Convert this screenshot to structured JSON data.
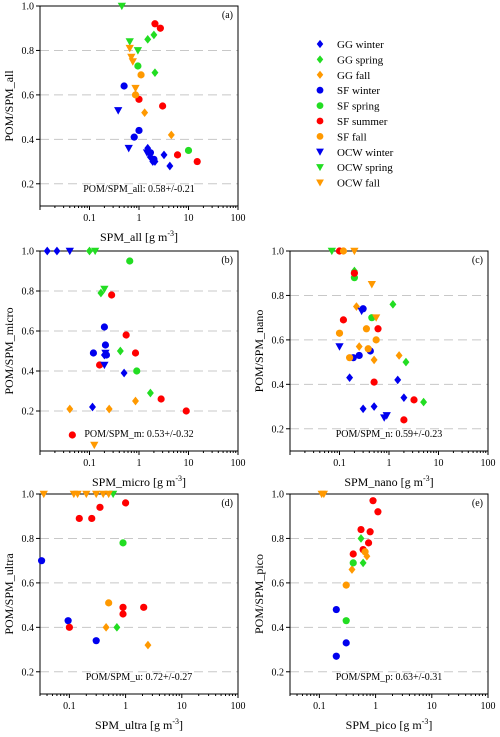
{
  "colors": {
    "GG": "#0000ee",
    "SF_winter": "#0000ee",
    "spring": "#22dd22",
    "fall": "#ff9900",
    "summer": "#ff0000",
    "grid": "#c8c8c8"
  },
  "legend": {
    "placement": "top-right",
    "items": [
      {
        "label": "GG winter",
        "shape": "diamond",
        "color": "#0000ee"
      },
      {
        "label": "GG spring",
        "shape": "diamond",
        "color": "#22dd22"
      },
      {
        "label": "GG fall",
        "shape": "diamond",
        "color": "#ff9900"
      },
      {
        "label": "SF winter",
        "shape": "circle",
        "color": "#0000ee"
      },
      {
        "label": "SF spring",
        "shape": "circle",
        "color": "#22dd22"
      },
      {
        "label": "SF summer",
        "shape": "circle",
        "color": "#ff0000"
      },
      {
        "label": "SF fall",
        "shape": "circle",
        "color": "#ff9900"
      },
      {
        "label": "OCW winter",
        "shape": "triangle-down",
        "color": "#0000ee"
      },
      {
        "label": "OCW spring",
        "shape": "triangle-down",
        "color": "#22dd22"
      },
      {
        "label": "OCW fall",
        "shape": "triangle-down",
        "color": "#ff9900"
      }
    ]
  },
  "chart_data": [
    {
      "type": "scatter",
      "panel": "(a)",
      "ylabel": "POM/SPM_all",
      "xlabel_main": "SPM_all [g m",
      "xlabel_sup": "-3",
      "xlabel_end": "]",
      "annotation": "POM/SPM_all: 0.58+/-0.21",
      "xscale": "log",
      "xlim": [
        0.01,
        100
      ],
      "ylim": [
        0.1,
        1.0
      ],
      "xticks": [
        "0.1",
        "1",
        "10",
        "100"
      ],
      "yticks": [
        "0.2",
        "0.4",
        "0.6",
        "0.8",
        "1.0"
      ],
      "grid": "horizontal-dashed",
      "series": [
        {
          "name": "GG winter",
          "points": [
            [
              1.5,
              0.36
            ],
            [
              1.7,
              0.32
            ],
            [
              1.9,
              0.3
            ],
            [
              2.1,
              0.3
            ],
            [
              3.2,
              0.33
            ],
            [
              4.2,
              0.28
            ]
          ]
        },
        {
          "name": "GG spring",
          "points": [
            [
              1.5,
              0.85
            ],
            [
              2.0,
              0.87
            ],
            [
              2.1,
              0.7
            ]
          ]
        },
        {
          "name": "GG fall",
          "points": [
            [
              1.3,
              0.52
            ],
            [
              4.5,
              0.42
            ]
          ]
        },
        {
          "name": "SF winter",
          "points": [
            [
              0.5,
              0.64
            ],
            [
              0.8,
              0.41
            ],
            [
              1.0,
              0.44
            ],
            [
              1.7,
              0.34
            ],
            [
              2.0,
              0.31
            ]
          ]
        },
        {
          "name": "SF spring",
          "points": [
            [
              0.95,
              0.73
            ],
            [
              10,
              0.35
            ]
          ]
        },
        {
          "name": "SF summer",
          "points": [
            [
              1.0,
              0.58
            ],
            [
              2.1,
              0.92
            ],
            [
              2.7,
              0.9
            ],
            [
              3.0,
              0.55
            ],
            [
              6.0,
              0.33
            ],
            [
              15,
              0.3
            ]
          ]
        },
        {
          "name": "SF fall",
          "points": [
            [
              0.85,
              0.6
            ],
            [
              1.1,
              0.69
            ]
          ]
        },
        {
          "name": "OCW winter",
          "points": [
            [
              0.38,
              0.53
            ],
            [
              0.62,
              0.36
            ],
            [
              1.45,
              0.34
            ]
          ]
        },
        {
          "name": "OCW spring",
          "points": [
            [
              0.45,
              1.0
            ],
            [
              0.65,
              0.84
            ],
            [
              0.95,
              0.8
            ]
          ]
        },
        {
          "name": "OCW fall",
          "points": [
            [
              0.65,
              0.81
            ],
            [
              0.7,
              0.77
            ],
            [
              0.85,
              0.63
            ],
            [
              0.75,
              0.75
            ]
          ]
        }
      ]
    },
    {
      "type": "scatter",
      "panel": "(b)",
      "ylabel": "POM/SPM_micro",
      "xlabel_main": "SPM_micro [g m",
      "xlabel_sup": "-3",
      "xlabel_end": "]",
      "annotation": "POM/SPM_m: 0.53+/-0.32",
      "xscale": "log",
      "xlim": [
        0.01,
        100
      ],
      "ylim": [
        0.0,
        1.0
      ],
      "xticks": [
        "0.1",
        "1",
        "10",
        "100"
      ],
      "yticks": [
        "0.2",
        "0.4",
        "0.6",
        "0.8",
        "1.0"
      ],
      "grid": "horizontal-dashed",
      "series": [
        {
          "name": "GG winter",
          "points": [
            [
              0.115,
              0.22
            ],
            [
              0.2,
              0.48
            ],
            [
              0.5,
              0.39
            ],
            [
              0.014,
              1.0
            ],
            [
              0.022,
              1.0
            ]
          ]
        },
        {
          "name": "GG spring",
          "points": [
            [
              0.17,
              0.79
            ],
            [
              0.42,
              0.5
            ],
            [
              1.7,
              0.29
            ],
            [
              0.1,
              1.0
            ]
          ]
        },
        {
          "name": "GG fall",
          "points": [
            [
              0.04,
              0.21
            ],
            [
              0.25,
              0.21
            ],
            [
              0.85,
              0.25
            ]
          ]
        },
        {
          "name": "SF winter",
          "points": [
            [
              0.12,
              0.49
            ],
            [
              0.2,
              0.62
            ],
            [
              0.21,
              0.53
            ],
            [
              0.22,
              0.48
            ]
          ]
        },
        {
          "name": "SF spring",
          "points": [
            [
              0.65,
              0.95
            ],
            [
              0.9,
              0.4
            ]
          ]
        },
        {
          "name": "SF summer",
          "points": [
            [
              0.045,
              0.08
            ],
            [
              0.16,
              0.43
            ],
            [
              0.28,
              0.78
            ],
            [
              0.55,
              0.58
            ],
            [
              0.85,
              0.49
            ],
            [
              2.8,
              0.26
            ],
            [
              9.0,
              0.2
            ]
          ]
        },
        {
          "name": "SF fall",
          "points": []
        },
        {
          "name": "OCW winter",
          "points": [
            [
              0.2,
              0.43
            ],
            [
              0.21,
              0.49
            ],
            [
              0.04,
              1.0
            ]
          ]
        },
        {
          "name": "OCW spring",
          "points": [
            [
              0.2,
              0.81
            ],
            [
              0.13,
              1.0
            ]
          ]
        },
        {
          "name": "OCW fall",
          "points": [
            [
              0.125,
              0.03
            ]
          ]
        }
      ]
    },
    {
      "type": "scatter",
      "panel": "(c)",
      "ylabel": "POM/SPM_nano",
      "xlabel_main": "SPM_nano [g m",
      "xlabel_sup": "-3",
      "xlabel_end": "]",
      "annotation": "POM/SPM_n: 0.59+/-0.23",
      "xscale": "log",
      "xlim": [
        0.01,
        100
      ],
      "ylim": [
        0.1,
        1.0
      ],
      "xticks": [
        "0.1",
        "1",
        "10",
        "100"
      ],
      "yticks": [
        "0.2",
        "0.4",
        "0.6",
        "0.8",
        "1.0"
      ],
      "grid": "horizontal-dashed",
      "series": [
        {
          "name": "GG winter",
          "points": [
            [
              0.16,
              0.43
            ],
            [
              0.3,
              0.29
            ],
            [
              0.5,
              0.3
            ],
            [
              1.5,
              0.42
            ],
            [
              2.0,
              0.34
            ]
          ]
        },
        {
          "name": "GG spring",
          "points": [
            [
              0.2,
              0.91
            ],
            [
              1.2,
              0.76
            ],
            [
              2.2,
              0.5
            ],
            [
              5.0,
              0.32
            ]
          ]
        },
        {
          "name": "GG fall",
          "points": [
            [
              0.22,
              0.75
            ],
            [
              0.25,
              0.57
            ],
            [
              0.5,
              0.51
            ],
            [
              1.6,
              0.53
            ]
          ]
        },
        {
          "name": "SF winter",
          "points": [
            [
              0.19,
              0.52
            ],
            [
              0.25,
              0.53
            ],
            [
              0.3,
              0.74
            ],
            [
              0.42,
              0.55
            ]
          ]
        },
        {
          "name": "SF spring",
          "points": [
            [
              0.2,
              0.88
            ],
            [
              0.45,
              0.7
            ]
          ]
        },
        {
          "name": "SF summer",
          "points": [
            [
              0.1,
              1.0
            ],
            [
              0.12,
              0.69
            ],
            [
              0.2,
              0.9
            ],
            [
              0.5,
              0.41
            ],
            [
              0.6,
              0.65
            ],
            [
              2.0,
              0.24
            ],
            [
              3.2,
              0.33
            ]
          ]
        },
        {
          "name": "SF fall",
          "points": [
            [
              0.1,
              0.63
            ],
            [
              0.12,
              1.0
            ],
            [
              0.16,
              0.52
            ],
            [
              0.35,
              0.65
            ],
            [
              0.38,
              0.56
            ],
            [
              0.55,
              0.6
            ]
          ]
        },
        {
          "name": "OCW winter",
          "points": [
            [
              0.1,
              0.57
            ],
            [
              0.28,
              0.73
            ],
            [
              0.8,
              0.25
            ],
            [
              0.9,
              0.26
            ]
          ]
        },
        {
          "name": "OCW spring",
          "points": [
            [
              0.07,
              1.0
            ]
          ]
        },
        {
          "name": "OCW fall",
          "points": [
            [
              0.2,
              1.0
            ],
            [
              0.45,
              0.85
            ],
            [
              0.55,
              0.7
            ]
          ]
        }
      ]
    },
    {
      "type": "scatter",
      "panel": "(d)",
      "ylabel": "POM/SPM_ultra",
      "xlabel_main": "SPM_ultra [g m",
      "xlabel_sup": "-3",
      "xlabel_end": "]",
      "annotation": "POM/SPM_u: 0.72+/-0.27",
      "xscale": "log",
      "xlim": [
        0.03,
        100
      ],
      "ylim": [
        0.1,
        1.0
      ],
      "xticks": [
        "0.1",
        "1",
        "10",
        "100"
      ],
      "yticks": [
        "0.2",
        "0.4",
        "0.6",
        "0.8",
        "1.0"
      ],
      "grid": "horizontal-dashed",
      "series": [
        {
          "name": "GG winter",
          "points": []
        },
        {
          "name": "GG spring",
          "points": [
            [
              0.7,
              0.4
            ]
          ]
        },
        {
          "name": "GG fall",
          "points": [
            [
              0.45,
              0.4
            ],
            [
              2.5,
              0.32
            ]
          ]
        },
        {
          "name": "SF winter",
          "points": [
            [
              0.032,
              0.7
            ],
            [
              0.095,
              0.43
            ],
            [
              0.3,
              0.34
            ]
          ]
        },
        {
          "name": "SF spring",
          "points": [
            [
              0.9,
              0.78
            ]
          ]
        },
        {
          "name": "SF summer",
          "points": [
            [
              0.1,
              0.4
            ],
            [
              0.15,
              0.89
            ],
            [
              0.25,
              0.89
            ],
            [
              0.35,
              0.94
            ],
            [
              0.9,
              0.49
            ],
            [
              0.9,
              0.46
            ],
            [
              1.0,
              0.96
            ],
            [
              2.1,
              0.49
            ]
          ]
        },
        {
          "name": "SF fall",
          "points": [
            [
              0.5,
              0.51
            ]
          ]
        },
        {
          "name": "OCW winter",
          "points": []
        },
        {
          "name": "OCW spring",
          "points": [
            [
              0.6,
              1.0
            ]
          ]
        },
        {
          "name": "OCW fall",
          "points": [
            [
              0.035,
              1.0
            ],
            [
              0.12,
              1.0
            ],
            [
              0.14,
              1.0
            ],
            [
              0.2,
              1.0
            ],
            [
              0.3,
              1.0
            ],
            [
              0.4,
              1.0
            ],
            [
              0.5,
              1.0
            ]
          ]
        }
      ]
    },
    {
      "type": "scatter",
      "panel": "(e)",
      "ylabel": "POM/SPM_pico",
      "xlabel_main": "SPM_pico [g m",
      "xlabel_sup": "-3",
      "xlabel_end": "]",
      "annotation": "POM/SPM_p: 0.63+/-0.31",
      "xscale": "log",
      "xlim": [
        0.03,
        100
      ],
      "ylim": [
        0.1,
        1.0
      ],
      "xticks": [
        "0.1",
        "1",
        "10",
        "100"
      ],
      "yticks": [
        "0.2",
        "0.4",
        "0.6",
        "0.8",
        "1.0"
      ],
      "grid": "horizontal-dashed",
      "series": [
        {
          "name": "GG winter",
          "points": []
        },
        {
          "name": "GG spring",
          "points": [
            [
              0.55,
              0.8
            ],
            [
              0.6,
              0.69
            ]
          ]
        },
        {
          "name": "GG fall",
          "points": [
            [
              0.38,
              0.66
            ],
            [
              0.7,
              0.72
            ]
          ]
        },
        {
          "name": "SF winter",
          "points": [
            [
              0.2,
              0.48
            ],
            [
              0.2,
              0.27
            ],
            [
              0.3,
              0.33
            ]
          ]
        },
        {
          "name": "SF spring",
          "points": [
            [
              0.3,
              0.43
            ],
            [
              0.4,
              0.69
            ]
          ]
        },
        {
          "name": "SF summer",
          "points": [
            [
              0.4,
              0.73
            ],
            [
              0.55,
              0.84
            ],
            [
              0.6,
              0.75
            ],
            [
              0.75,
              0.78
            ],
            [
              0.8,
              0.83
            ],
            [
              0.9,
              0.97
            ],
            [
              1.1,
              0.92
            ]
          ]
        },
        {
          "name": "SF fall",
          "points": [
            [
              0.3,
              0.59
            ],
            [
              0.65,
              0.74
            ]
          ]
        },
        {
          "name": "OCW winter",
          "points": []
        },
        {
          "name": "OCW spring",
          "points": []
        },
        {
          "name": "OCW fall",
          "points": [
            [
              0.11,
              1.0
            ],
            [
              0.12,
              1.0
            ]
          ]
        }
      ]
    }
  ]
}
